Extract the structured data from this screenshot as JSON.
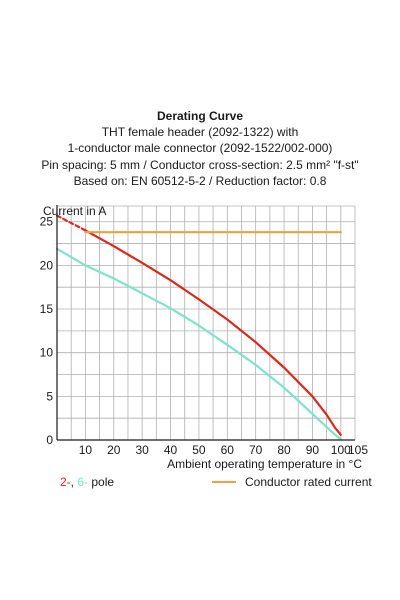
{
  "title": "Derating Curve",
  "subtitle_lines": [
    "THT female header (2092-1322) with",
    "1-conductor male connector (2092-1522/002-000)",
    "Pin spacing: 5 mm / Conductor cross-section: 2.5 mm² \"f-st\"",
    "Based on: EN 60512-5-2 / Reduction factor: 0.8"
  ],
  "legend": {
    "pole_2": "2-",
    "separator": ", ",
    "pole_6": "6-",
    "pole_suffix": " pole",
    "rated": "Conductor rated current"
  },
  "colors": {
    "pole_2": "#d9281e",
    "pole_6": "#7de3cc",
    "rated": "#f0a040",
    "grid": "#b0b0b0",
    "axis": "#1a1a1a"
  },
  "chart_data": {
    "type": "line",
    "xlabel": "Ambient operating temperature in °C",
    "ylabel": "Current in A",
    "xlim": [
      0,
      105
    ],
    "ylim": [
      0,
      25
    ],
    "x_ticks": [
      10,
      20,
      30,
      40,
      50,
      60,
      70,
      80,
      90,
      100,
      105
    ],
    "y_ticks": [
      0,
      5,
      10,
      15,
      20,
      25
    ],
    "grid": true,
    "series": [
      {
        "name": "2- pole",
        "color": "#d9281e",
        "dashed_segment": {
          "x": [
            0,
            10
          ],
          "y": [
            25.7,
            24.0
          ]
        },
        "x": [
          10,
          20,
          30,
          40,
          50,
          60,
          70,
          80,
          90,
          95,
          98,
          100
        ],
        "y": [
          24.0,
          22.2,
          20.3,
          18.3,
          16.1,
          13.8,
          11.2,
          8.3,
          5.0,
          2.9,
          1.4,
          0.6
        ]
      },
      {
        "name": "6- pole",
        "color": "#7de3cc",
        "x": [
          0,
          10,
          20,
          30,
          40,
          50,
          60,
          70,
          80,
          90,
          95,
          98,
          100
        ],
        "y": [
          21.9,
          20.0,
          18.5,
          16.8,
          15.1,
          13.1,
          10.9,
          8.6,
          6.0,
          3.0,
          1.5,
          0.6,
          0.1
        ]
      },
      {
        "name": "Conductor rated current",
        "color": "#f0a040",
        "x": [
          10,
          100
        ],
        "y": [
          23.8,
          23.8
        ]
      }
    ]
  }
}
